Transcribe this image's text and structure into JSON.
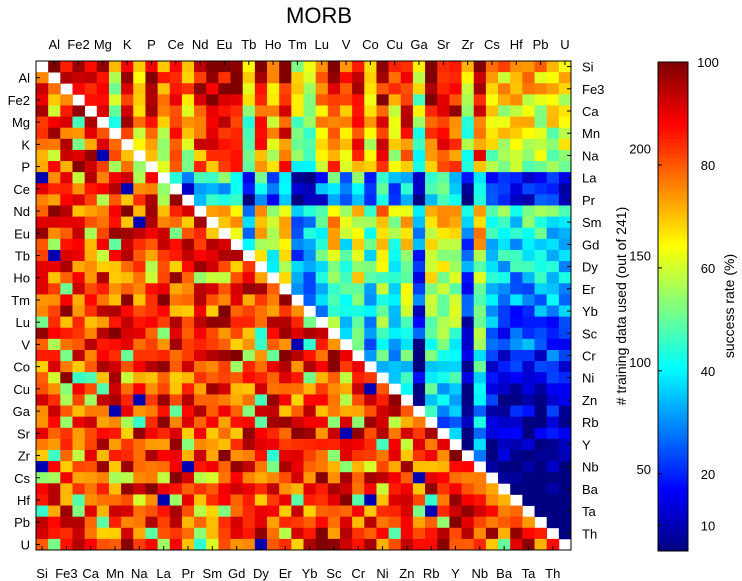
{
  "chart_data": {
    "type": "heatmap",
    "title": "MORB",
    "elements_upper_top": [
      "Al",
      "Fe2",
      "Mg",
      "K",
      "P",
      "Ce",
      "Nd",
      "Eu",
      "Tb",
      "Ho",
      "Tm",
      "Lu",
      "V",
      "Co",
      "Cu",
      "Ga",
      "Sr",
      "Zr",
      "Cs",
      "Hf",
      "Pb",
      "U"
    ],
    "elements_left": [
      "Al",
      "Fe2",
      "Mg",
      "K",
      "P",
      "Ce",
      "Nd",
      "Eu",
      "Tb",
      "Ho",
      "Tm",
      "Lu",
      "V",
      "Co",
      "Cu",
      "Ga",
      "Sr",
      "Zr",
      "Cs",
      "Hf",
      "Pb",
      "U"
    ],
    "elements_bottom": [
      "Si",
      "Fe3",
      "Ca",
      "Mn",
      "Na",
      "La",
      "Pr",
      "Sm",
      "Gd",
      "Dy",
      "Er",
      "Yb",
      "Sc",
      "Cr",
      "Ni",
      "Zn",
      "Rb",
      "Y",
      "Nb",
      "Ba",
      "Ta",
      "Th"
    ],
    "elements_right": [
      "Si",
      "Fe3",
      "Ca",
      "Mn",
      "Na",
      "La",
      "Pr",
      "Sm",
      "Gd",
      "Dy",
      "Er",
      "Yb",
      "Sc",
      "Cr",
      "Ni",
      "Zn",
      "Rb",
      "Y",
      "Nb",
      "Ba",
      "Ta",
      "Th"
    ],
    "right_axis_label": "# training data used (out of 241)",
    "right_axis_ticks": [
      "50",
      "100",
      "150",
      "200"
    ],
    "right_axis_values": [
      50,
      100,
      150,
      200
    ],
    "right_axis_range": [
      12,
      241
    ],
    "colorbar_label": "success rate (%)",
    "colorbar_ticks": [
      "10",
      "20",
      "40",
      "60",
      "80",
      "100"
    ],
    "colorbar_values": [
      10,
      20,
      40,
      60,
      80,
      100
    ],
    "colorbar_range": [
      5,
      100
    ],
    "n": 44,
    "lower_triangle": "success rate (%)",
    "upper_triangle": "# training data used",
    "diagonal": "blank"
  }
}
